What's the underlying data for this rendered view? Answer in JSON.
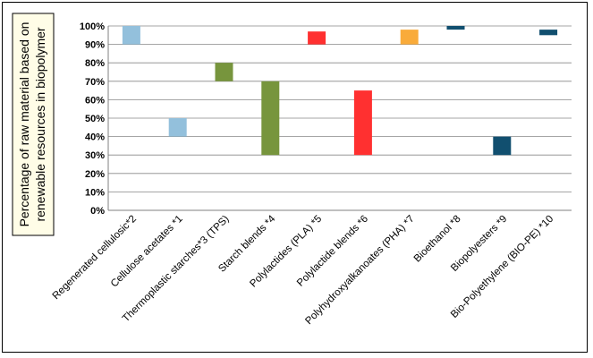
{
  "chart_data": {
    "type": "bar",
    "subtype": "floating-range",
    "ylabel": [
      "Percentage of raw material based on",
      "renewable resources in biopolymer"
    ],
    "ylim": [
      0,
      100
    ],
    "y_ticks": [
      "0%",
      "10%",
      "20%",
      "30%",
      "40%",
      "50%",
      "60%",
      "70%",
      "80%",
      "90%",
      "100%"
    ],
    "grid": true,
    "categories": [
      "Regenerated cellulosic*2",
      "Cellulose acetates *1",
      "Thermoplastic starches*3 (TPS)",
      "Starch blends *4",
      "Polylactides (PLA) *5",
      "Polylactide blends *6",
      "Polyhydroxyalkanoates (PHA) *7",
      "Bioethanol *8",
      "Biopolyesters *9",
      "Bio-Polyethylene (BIO-PE) *10"
    ],
    "ranges": [
      [
        90,
        100
      ],
      [
        40,
        50
      ],
      [
        70,
        80
      ],
      [
        30,
        70
      ],
      [
        90,
        97
      ],
      [
        30,
        65
      ],
      [
        90,
        98
      ],
      [
        98,
        100
      ],
      [
        30,
        40
      ],
      [
        95,
        98
      ]
    ],
    "colors": [
      "#93c0dc",
      "#93c0dc",
      "#77953d",
      "#77953d",
      "#ff3030",
      "#ff3030",
      "#f9ab3a",
      "#114f6f",
      "#114f6f",
      "#114f6f"
    ]
  }
}
